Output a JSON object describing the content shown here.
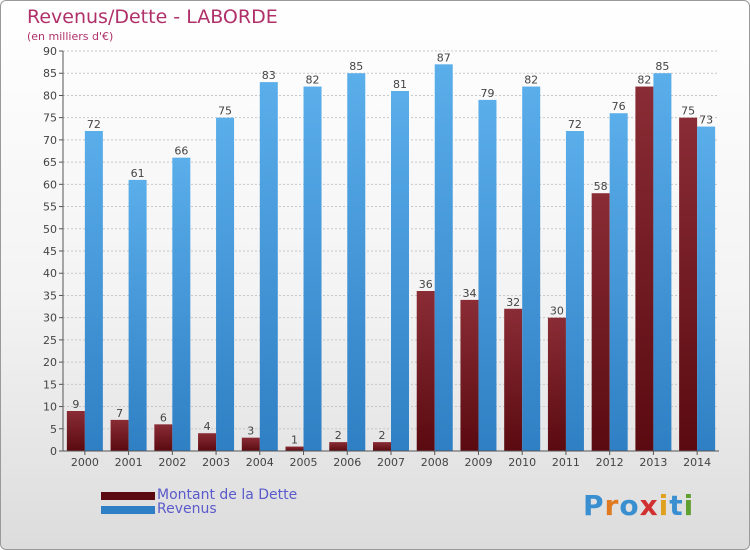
{
  "header": {
    "title": "Revenus/Dette - LABORDE",
    "subtitle": "(en milliers d'€)"
  },
  "colors": {
    "dette_top": "#8a2c35",
    "dette_bottom": "#5a0a10",
    "revenus_top": "#5aaeea",
    "revenus_bottom": "#2f7fc4",
    "title": "#b0306a",
    "legend_text": "#5a5acc"
  },
  "chart_data": {
    "type": "bar",
    "title": "Revenus/Dette - LABORDE",
    "subtitle": "(en milliers d'€)",
    "categories": [
      "2000",
      "2001",
      "2002",
      "2003",
      "2004",
      "2005",
      "2006",
      "2007",
      "2008",
      "2009",
      "2010",
      "2011",
      "2012",
      "2013",
      "2014"
    ],
    "series": [
      {
        "name": "Montant de la Dette",
        "values": [
          9,
          7,
          6,
          4,
          3,
          1,
          2,
          2,
          36,
          34,
          32,
          30,
          58,
          82,
          75
        ]
      },
      {
        "name": "Revenus",
        "values": [
          72,
          61,
          66,
          75,
          83,
          82,
          85,
          81,
          87,
          79,
          82,
          72,
          76,
          85,
          73
        ]
      }
    ],
    "ylim": [
      0,
      90
    ],
    "yticks": [
      0,
      5,
      10,
      15,
      20,
      25,
      30,
      35,
      40,
      45,
      50,
      55,
      60,
      65,
      70,
      75,
      80,
      85,
      90
    ],
    "grid": true,
    "legend": "bottom-left"
  },
  "legend": {
    "items": [
      {
        "label": "Montant de la Dette",
        "icon": "dark-red-swatch"
      },
      {
        "label": "Revenus",
        "icon": "blue-swatch"
      }
    ]
  },
  "logo": {
    "text": "Proxiti",
    "letters": [
      "P",
      "r",
      "o",
      "x",
      "i",
      "t",
      "i"
    ],
    "letter_colors": [
      "#3a8fd0",
      "#e07a20",
      "#3a8fd0",
      "#d03030",
      "#e0a020",
      "#3a8fd0",
      "#60a030"
    ]
  }
}
